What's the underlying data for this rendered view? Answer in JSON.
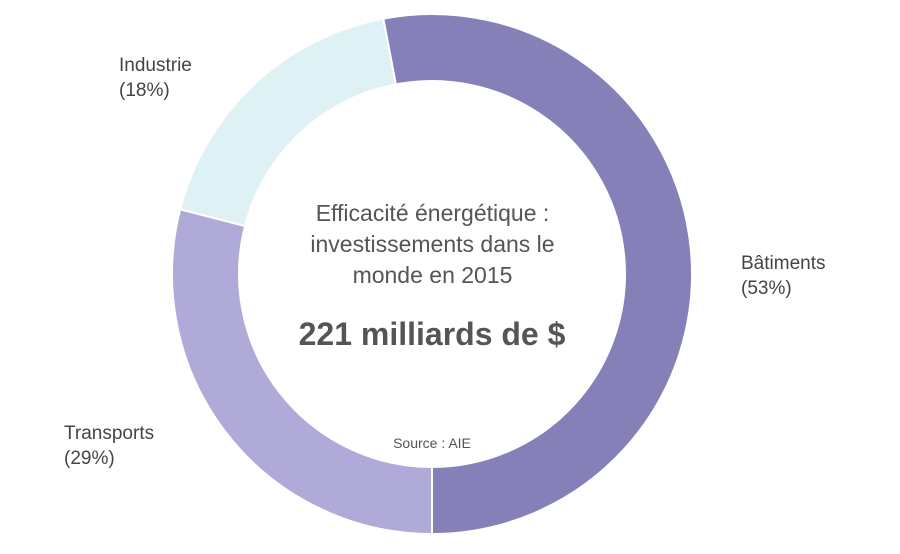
{
  "chart_data": {
    "type": "pie",
    "variant": "donut",
    "title_lines": [
      "Efficacité énergétique :",
      "investissements dans le",
      "monde en 2015"
    ],
    "total": "221 milliards de $",
    "source": "Source : AIE",
    "slices": [
      {
        "label": "Bâtiments",
        "percent_text": "(53%)",
        "value": 53,
        "color": "#8580b8"
      },
      {
        "label": "Transports",
        "percent_text": "(29%)",
        "value": 29,
        "color": "#afaad8"
      },
      {
        "label": "Industrie",
        "percent_text": "(18%)",
        "value": 18,
        "color": "#def2f6"
      }
    ]
  }
}
